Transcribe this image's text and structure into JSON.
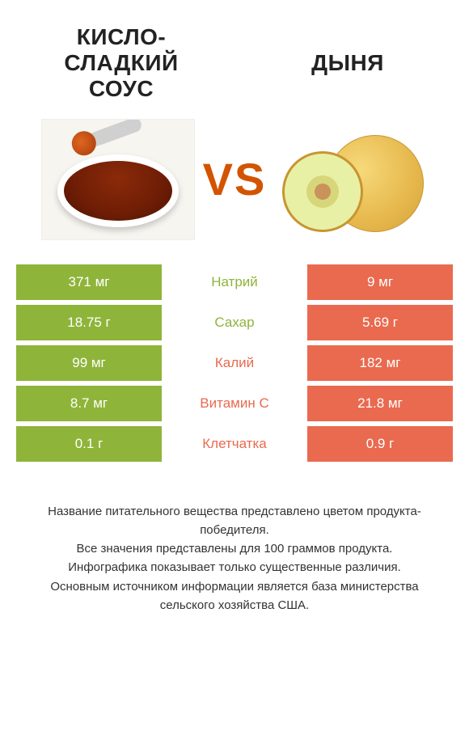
{
  "product_left": {
    "title": "КИСЛО-СЛАДКИЙ СОУС",
    "color": "#8fb43a"
  },
  "product_right": {
    "title": "ДЫНЯ",
    "color": "#e96a4f"
  },
  "vs_label": "VS",
  "vs_color": "#d35400",
  "rows": [
    {
      "left": "371 мг",
      "label": "Натрий",
      "right": "9 мг",
      "winner": "left"
    },
    {
      "left": "18.75 г",
      "label": "Сахар",
      "right": "5.69 г",
      "winner": "left"
    },
    {
      "left": "99 мг",
      "label": "Калий",
      "right": "182 мг",
      "winner": "right"
    },
    {
      "left": "8.7 мг",
      "label": "Витамин C",
      "right": "21.8 мг",
      "winner": "right"
    },
    {
      "left": "0.1 г",
      "label": "Клетчатка",
      "right": "0.9 г",
      "winner": "right"
    }
  ],
  "footer_lines": [
    "Название питательного вещества представлено цветом продукта-победителя.",
    "Все значения представлены для 100 граммов продукта.",
    "Инфографика показывает только существенные различия.",
    "Основным источником информации является база министерства сельского хозяйства США."
  ]
}
